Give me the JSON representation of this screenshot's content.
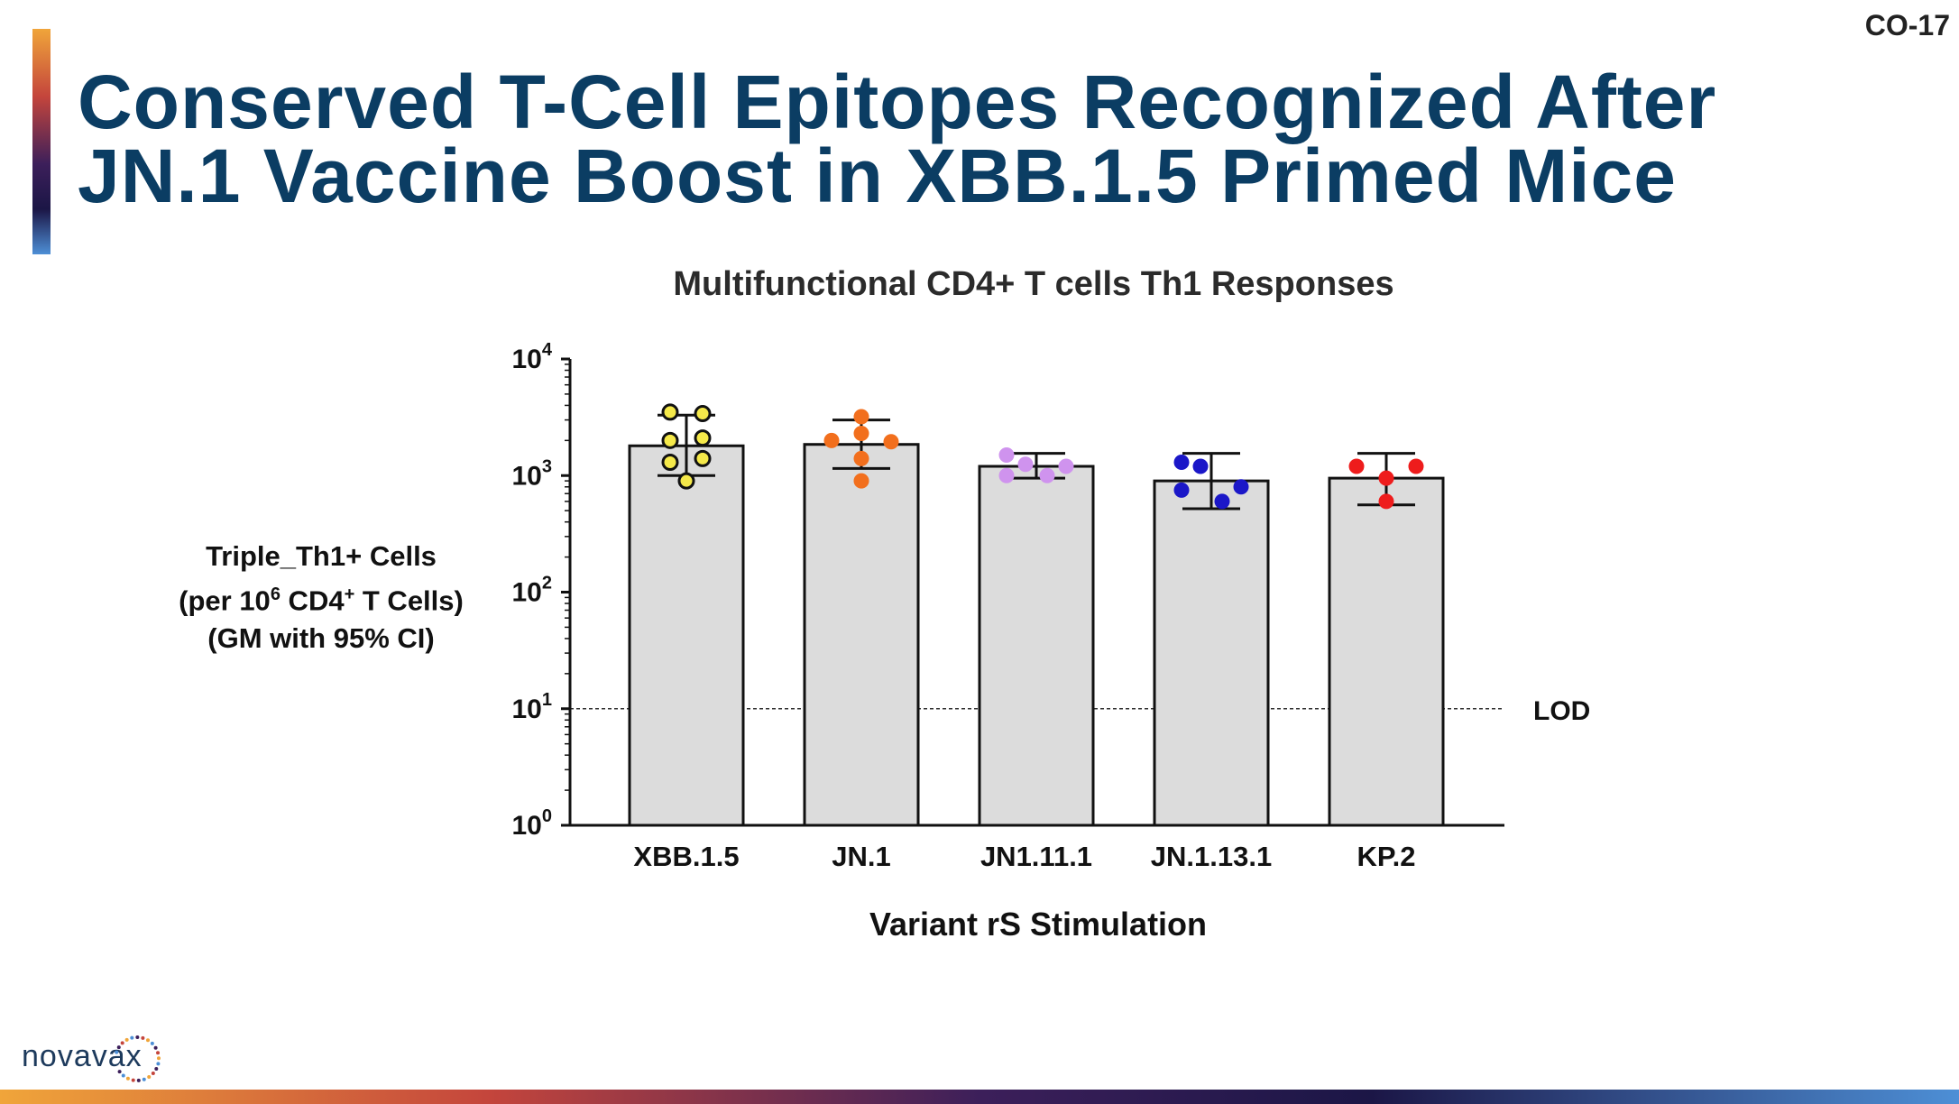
{
  "slide": {
    "number": "CO-17",
    "title_line1": "Conserved T-Cell Epitopes Recognized After",
    "title_line2": "JN.1 Vaccine Boost in XBB.1.5 Primed Mice",
    "logo_text": "novavax"
  },
  "chart_data": {
    "type": "bar",
    "title": "Multifunctional CD4+ T cells Th1 Responses",
    "ylabel_line1": "Triple_Th1+ Cells",
    "ylabel_line2_pre": "(per 10",
    "ylabel_line2_sup": "6",
    "ylabel_line2_mid": " CD4",
    "ylabel_line2_sup2": "+",
    "ylabel_line2_post": " T Cells)",
    "ylabel_line3": "(GM with 95% CI)",
    "xlabel": "Variant rS Stimulation",
    "yscale": "log10",
    "ylim": [
      1,
      10000
    ],
    "yticks": [
      {
        "base": "10",
        "exp": "0",
        "value": 1
      },
      {
        "base": "10",
        "exp": "1",
        "value": 10
      },
      {
        "base": "10",
        "exp": "2",
        "value": 100
      },
      {
        "base": "10",
        "exp": "3",
        "value": 1000
      },
      {
        "base": "10",
        "exp": "4",
        "value": 10000
      }
    ],
    "lod": {
      "value": 10,
      "label": "LOD"
    },
    "bars": [
      {
        "category": "XBB.1.5",
        "value": 1800,
        "ci": [
          1000,
          3300
        ],
        "color": "#f5e94a",
        "hollow": true,
        "points": [
          3500,
          3400,
          2100,
          2000,
          1400,
          1300,
          900
        ]
      },
      {
        "category": "JN.1",
        "value": 1850,
        "ci": [
          1150,
          3000
        ],
        "color": "#f26f1d",
        "hollow": false,
        "points": [
          3200,
          2300,
          2000,
          1950,
          1400,
          900
        ]
      },
      {
        "category": "JN1.11.1",
        "value": 1200,
        "ci": [
          950,
          1550
        ],
        "color": "#cf93ee",
        "hollow": false,
        "points": [
          1500,
          1250,
          1200,
          1000,
          1000
        ]
      },
      {
        "category": "JN.1.13.1",
        "value": 900,
        "ci": [
          520,
          1550
        ],
        "color": "#1b17c8",
        "hollow": false,
        "points": [
          1300,
          1200,
          800,
          750,
          600
        ]
      },
      {
        "category": "KP.2",
        "value": 950,
        "ci": [
          560,
          1550
        ],
        "color": "#ee1c1c",
        "hollow": false,
        "points": [
          1200,
          1200,
          950,
          600
        ]
      }
    ]
  }
}
